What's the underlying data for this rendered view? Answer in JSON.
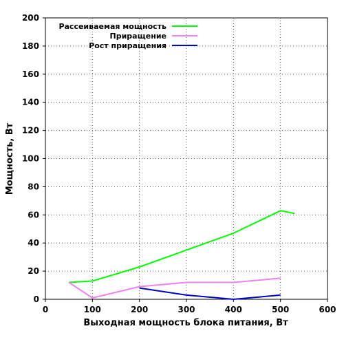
{
  "chart_data": {
    "type": "line",
    "title": "",
    "xlabel": "Выходная мощность блока питания, Вт",
    "ylabel": "Мощность, Вт",
    "xlim": [
      0,
      600
    ],
    "ylim": [
      0,
      200
    ],
    "x_ticks": [
      "0",
      "100",
      "200",
      "300",
      "400",
      "500",
      "600"
    ],
    "y_ticks": [
      "0",
      "20",
      "40",
      "60",
      "80",
      "100",
      "120",
      "140",
      "160",
      "180",
      "200"
    ],
    "grid": true,
    "legend_position": "top-left",
    "series": [
      {
        "name": "Рассеиваемая мощность",
        "color": "#00ff00",
        "points": [
          [
            50,
            12
          ],
          [
            100,
            13
          ],
          [
            200,
            23
          ],
          [
            300,
            35
          ],
          [
            400,
            47
          ],
          [
            500,
            63
          ],
          [
            530,
            61
          ]
        ]
      },
      {
        "name": "Приращение",
        "color": "#ee82ee",
        "points": [
          [
            50,
            12
          ],
          [
            100,
            1
          ],
          [
            200,
            9
          ],
          [
            300,
            12
          ],
          [
            400,
            12
          ],
          [
            500,
            15
          ]
        ]
      },
      {
        "name": "Рост приращения",
        "color": "#0000cc",
        "points": [
          [
            200,
            8
          ],
          [
            300,
            3
          ],
          [
            400,
            0
          ],
          [
            500,
            3
          ]
        ]
      }
    ]
  }
}
